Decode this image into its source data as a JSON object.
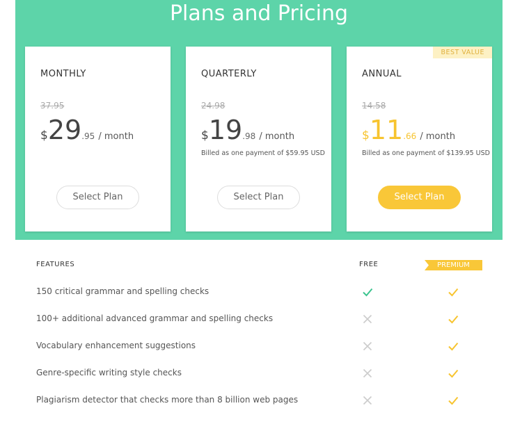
{
  "header": {
    "title": "Plans and Pricing"
  },
  "plans": [
    {
      "name": "MONTHLY",
      "old_price": "37.95",
      "currency": "$",
      "price": "29",
      "cents": ".95",
      "period": "/ month",
      "button": "Select Plan",
      "highlight": false
    },
    {
      "name": "QUARTERLY",
      "old_price": "24.98",
      "currency": "$",
      "price": "19",
      "cents": ".98",
      "period": "/ month",
      "note": "Billed as one payment of $59.95 USD",
      "button": "Select Plan",
      "highlight": false
    },
    {
      "name": "ANNUAL",
      "old_price": "14.58",
      "currency": "$",
      "price": "11",
      "cents": ".66",
      "period": "/ month",
      "note": "Billed as one payment of $139.95 USD",
      "button": "Select Plan",
      "highlight": true,
      "badge": "BEST VALUE"
    }
  ],
  "features": {
    "headers": [
      "FEATURES",
      "FREE",
      "PREMIUM"
    ],
    "rows": [
      {
        "label": "150 critical grammar and spelling checks",
        "free": true,
        "premium": true
      },
      {
        "label": "100+ additional advanced grammar and spelling checks",
        "free": false,
        "premium": true
      },
      {
        "label": "Vocabulary enhancement suggestions",
        "free": false,
        "premium": true
      },
      {
        "label": "Genre-specific writing style checks",
        "free": false,
        "premium": true
      },
      {
        "label": "Plagiarism detector that checks more than 8 billion web pages",
        "free": false,
        "premium": true
      }
    ]
  }
}
